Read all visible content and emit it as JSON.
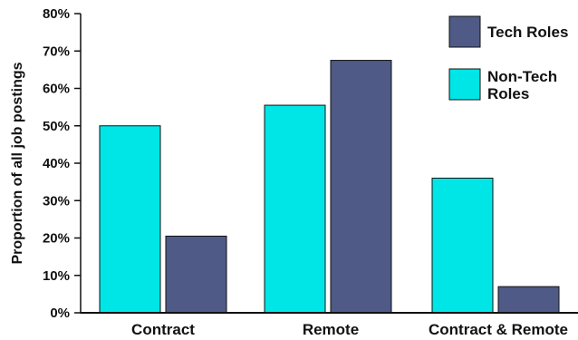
{
  "chart_data": {
    "type": "bar",
    "title": "",
    "xlabel": "",
    "ylabel": "Proportion of all job postings",
    "ylim": [
      0,
      80
    ],
    "yticks": [
      "0%",
      "10%",
      "20%",
      "30%",
      "40%",
      "50%",
      "60%",
      "70%",
      "80%"
    ],
    "categories": [
      "Contract",
      "Remote",
      "Contract & Remote"
    ],
    "series": [
      {
        "name": "Non-Tech Roles",
        "color": "#00e5e5",
        "values": [
          50,
          55.5,
          36
        ]
      },
      {
        "name": "Tech Roles",
        "color": "#4f5a87",
        "values": [
          20.5,
          67.5,
          7
        ]
      }
    ],
    "legend": {
      "placement": "top-right",
      "order": [
        1,
        0
      ],
      "lines": [
        [
          "Tech Roles"
        ],
        [
          "Non-Tech",
          "Roles"
        ]
      ]
    },
    "grid": false
  }
}
